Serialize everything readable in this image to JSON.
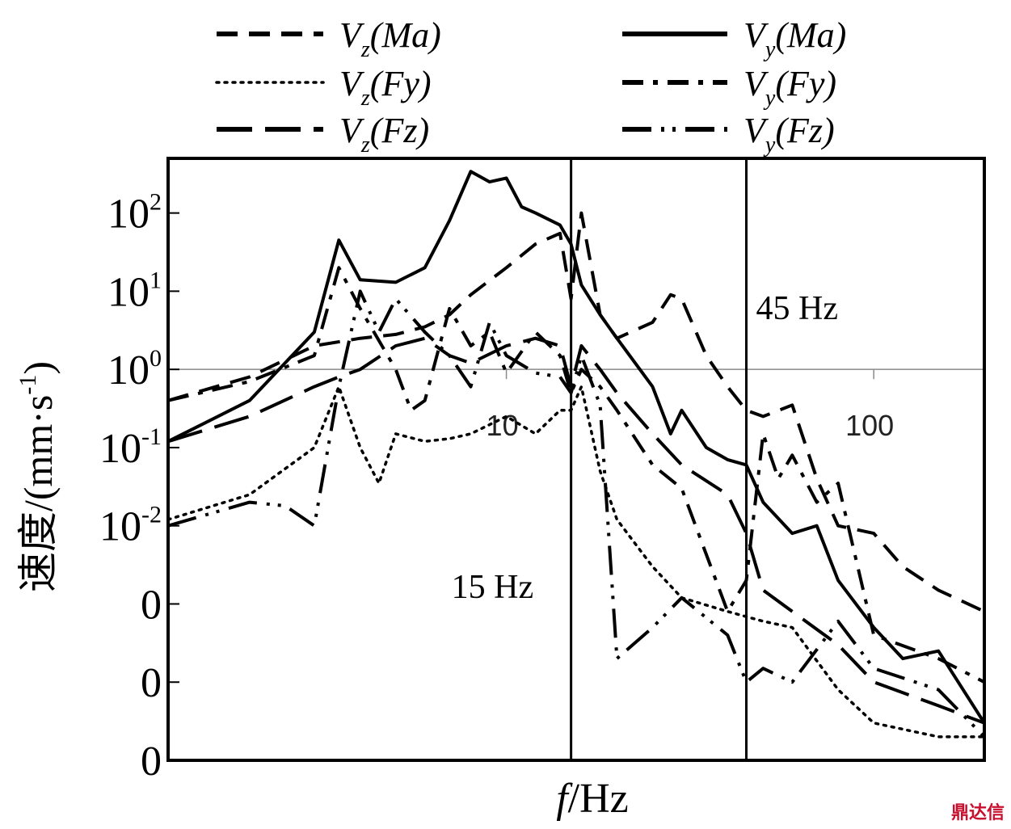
{
  "chart_data": {
    "type": "line",
    "xlabel_italic": "f",
    "xlabel_rest": "/Hz",
    "ylabel": "速度/(mm·s-1)",
    "ylabel_main": "速度/(mm·s",
    "ylabel_sup": "-1",
    "ylabel_close": ")",
    "x_scale": "log",
    "y_scale": "log",
    "xlim": [
      1.2,
      200
    ],
    "ylim": [
      1e-05,
      500
    ],
    "x_ticks": [
      {
        "value": 10,
        "label": "10"
      },
      {
        "value": 100,
        "label": "100"
      }
    ],
    "y_ticks": [
      {
        "value": 100,
        "base": "10",
        "exp": "2"
      },
      {
        "value": 10,
        "base": "10",
        "exp": "1"
      },
      {
        "value": 1,
        "base": "10",
        "exp": "0"
      },
      {
        "value": 0.1,
        "base": "10",
        "exp": "-1"
      },
      {
        "value": 0.01,
        "base": "10",
        "exp": "-2"
      },
      {
        "value": 0.001,
        "base": "0",
        "exp": ""
      },
      {
        "value": 0.0001,
        "base": "0",
        "exp": ""
      },
      {
        "value": 1e-05,
        "base": "0",
        "exp": ""
      }
    ],
    "grid": false,
    "reference_line_y": 1,
    "vertical_markers": [
      {
        "x": 15,
        "label": "15 Hz"
      },
      {
        "x": 45,
        "label": "45 Hz"
      }
    ],
    "legend_position": "top",
    "series": [
      {
        "name": "Vz(Ma)",
        "main": "V",
        "sub": "z",
        "arg": "(Ma)",
        "column": "left",
        "style": "dashed",
        "color": "#000000",
        "x": [
          1.2,
          2,
          3,
          4,
          5,
          6,
          7,
          8,
          10,
          12,
          14,
          15,
          16,
          18,
          20,
          25,
          28,
          30,
          35,
          40,
          45,
          50,
          60,
          70,
          80,
          100,
          120,
          150,
          200
        ],
        "y": [
          0.4,
          0.8,
          2.0,
          2.5,
          2.8,
          3.5,
          5.0,
          9.0,
          20,
          40,
          55,
          8,
          100,
          5,
          2.5,
          4,
          9,
          8,
          1.5,
          0.6,
          0.3,
          0.25,
          0.35,
          0.04,
          0.01,
          0.008,
          0.003,
          0.0015,
          0.0008
        ]
      },
      {
        "name": "Vz(Fy)",
        "main": "V",
        "sub": "z",
        "arg": "(Fy)",
        "column": "left",
        "style": "dotted",
        "color": "#000000",
        "x": [
          1.2,
          2,
          3,
          3.5,
          4,
          4.5,
          5,
          6,
          7,
          8,
          10,
          12,
          14,
          15,
          16,
          18,
          20,
          25,
          30,
          40,
          50,
          60,
          80,
          100,
          150,
          200
        ],
        "y": [
          0.012,
          0.025,
          0.1,
          0.6,
          0.1,
          0.035,
          0.15,
          0.12,
          0.13,
          0.15,
          0.25,
          0.15,
          0.3,
          0.3,
          0.6,
          0.05,
          0.012,
          0.003,
          0.0012,
          0.0008,
          0.0006,
          0.0005,
          8e-05,
          3e-05,
          2e-05,
          2e-05
        ]
      },
      {
        "name": "Vz(Fz)",
        "main": "V",
        "sub": "z",
        "arg": "(Fz)",
        "column": "left",
        "style": "longdash",
        "color": "#000000",
        "x": [
          1.2,
          2,
          3,
          3.5,
          4,
          5,
          6,
          7,
          8,
          10,
          12,
          14,
          15,
          16,
          18,
          20,
          25,
          30,
          40,
          45,
          50,
          60,
          80,
          100,
          150,
          200
        ],
        "y": [
          0.12,
          0.25,
          0.6,
          0.8,
          1.0,
          2.0,
          2.5,
          1.5,
          1.2,
          2.0,
          2.5,
          2.0,
          0.6,
          2.0,
          1.0,
          0.5,
          0.15,
          0.06,
          0.025,
          0.008,
          0.0015,
          0.0008,
          0.0003,
          0.0001,
          5e-05,
          3e-05
        ]
      },
      {
        "name": "Vy(Ma)",
        "main": "V",
        "sub": "y",
        "arg": "(Ma)",
        "column": "right",
        "style": "solid",
        "color": "#000000",
        "x": [
          1.2,
          2,
          3,
          3.5,
          4,
          5,
          6,
          7,
          8,
          9,
          10,
          11,
          12,
          14,
          15,
          16,
          18,
          20,
          25,
          28,
          30,
          35,
          40,
          45,
          50,
          60,
          70,
          80,
          100,
          120,
          150,
          200
        ],
        "y": [
          0.12,
          0.4,
          3.0,
          45,
          14,
          13,
          20,
          80,
          340,
          250,
          280,
          120,
          100,
          70,
          40,
          12,
          5,
          2.5,
          0.6,
          0.15,
          0.3,
          0.1,
          0.07,
          0.06,
          0.02,
          0.008,
          0.01,
          0.002,
          0.0005,
          0.0002,
          0.00025,
          3e-05
        ]
      },
      {
        "name": "Vy(Fy)",
        "main": "V",
        "sub": "y",
        "arg": "(Fy)",
        "column": "right",
        "style": "dashdot",
        "color": "#000000",
        "x": [
          1.2,
          2,
          3,
          3.5,
          4,
          5,
          5.5,
          6,
          7,
          8,
          9,
          10,
          12,
          14,
          15,
          16,
          18,
          20,
          25,
          30,
          40,
          45,
          50,
          55,
          60,
          70,
          80,
          100,
          150,
          200
        ],
        "y": [
          0.4,
          0.7,
          1.5,
          20,
          6,
          1.0,
          0.3,
          0.4,
          6,
          2.0,
          3.0,
          0.9,
          3.0,
          1.5,
          0.5,
          1.0,
          0.6,
          0.3,
          0.06,
          0.03,
          0.0008,
          0.002,
          0.15,
          0.04,
          0.08,
          0.02,
          0.035,
          0.0004,
          0.0002,
          0.0001
        ]
      },
      {
        "name": "Vy(Fz)",
        "main": "V",
        "sub": "y",
        "arg": "(Fz)",
        "column": "right",
        "style": "longdashdot",
        "color": "#000000",
        "x": [
          1.2,
          2,
          2.5,
          3,
          3.5,
          4,
          4.5,
          5,
          6,
          7,
          8,
          9,
          10,
          12,
          14,
          15,
          16,
          18,
          20,
          25,
          30,
          40,
          45,
          50,
          60,
          80,
          100,
          150,
          200
        ],
        "y": [
          0.01,
          0.02,
          0.018,
          0.01,
          0.6,
          10,
          3.0,
          8,
          3.0,
          1.5,
          0.6,
          4,
          1.5,
          0.9,
          0.8,
          0.5,
          1.5,
          0.35,
          0.0002,
          0.0005,
          0.0012,
          0.0004,
          0.0001,
          0.00015,
          0.0001,
          0.0006,
          0.00015,
          8e-05,
          2e-05
        ]
      }
    ]
  },
  "watermark": "鼎达信"
}
